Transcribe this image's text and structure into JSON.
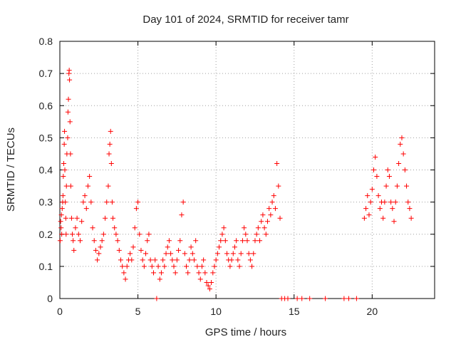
{
  "chart_data": {
    "type": "scatter",
    "title": "Day 101 of 2024, SRMTID for receiver tamr",
    "xlabel": "GPS time / hours",
    "ylabel": "SRMTID / TECUs",
    "xlim": [
      0,
      24
    ],
    "ylim": [
      0,
      0.8
    ],
    "x_ticks": [
      0,
      5,
      10,
      15,
      20
    ],
    "x_tick_labels": [
      "0",
      "5",
      "10",
      "15",
      "20"
    ],
    "y_ticks": [
      0,
      0.1,
      0.2,
      0.3,
      0.4,
      0.5,
      0.6,
      0.7,
      0.8
    ],
    "y_tick_labels": [
      "0",
      "0.1",
      "0.2",
      "0.3",
      "0.4",
      "0.5",
      "0.6",
      "0.7",
      "0.8"
    ],
    "grid": true,
    "marker": "plus",
    "color": "#ff0000",
    "series": [
      {
        "name": "SRMTID",
        "points": [
          [
            0.02,
            0.18
          ],
          [
            0.05,
            0.24
          ],
          [
            0.08,
            0.22
          ],
          [
            0.1,
            0.26
          ],
          [
            0.12,
            0.2
          ],
          [
            0.15,
            0.28
          ],
          [
            0.18,
            0.3
          ],
          [
            0.2,
            0.32
          ],
          [
            0.22,
            0.38
          ],
          [
            0.25,
            0.42
          ],
          [
            0.28,
            0.48
          ],
          [
            0.3,
            0.52
          ],
          [
            0.32,
            0.4
          ],
          [
            0.35,
            0.3
          ],
          [
            0.38,
            0.25
          ],
          [
            0.4,
            0.2
          ],
          [
            0.42,
            0.35
          ],
          [
            0.45,
            0.45
          ],
          [
            0.5,
            0.5
          ],
          [
            0.52,
            0.58
          ],
          [
            0.55,
            0.62
          ],
          [
            0.58,
            0.7
          ],
          [
            0.6,
            0.71
          ],
          [
            0.62,
            0.68
          ],
          [
            0.65,
            0.55
          ],
          [
            0.68,
            0.45
          ],
          [
            0.7,
            0.35
          ],
          [
            0.75,
            0.25
          ],
          [
            0.8,
            0.2
          ],
          [
            0.85,
            0.18
          ],
          [
            0.9,
            0.15
          ],
          [
            1.0,
            0.22
          ],
          [
            1.1,
            0.25
          ],
          [
            1.2,
            0.2
          ],
          [
            1.3,
            0.18
          ],
          [
            1.4,
            0.24
          ],
          [
            1.5,
            0.3
          ],
          [
            1.6,
            0.32
          ],
          [
            1.7,
            0.28
          ],
          [
            1.8,
            0.35
          ],
          [
            1.9,
            0.38
          ],
          [
            2.0,
            0.3
          ],
          [
            2.1,
            0.22
          ],
          [
            2.2,
            0.18
          ],
          [
            2.3,
            0.15
          ],
          [
            2.4,
            0.12
          ],
          [
            2.5,
            0.14
          ],
          [
            2.6,
            0.16
          ],
          [
            2.7,
            0.18
          ],
          [
            2.8,
            0.2
          ],
          [
            2.9,
            0.25
          ],
          [
            3.0,
            0.3
          ],
          [
            3.1,
            0.35
          ],
          [
            3.15,
            0.45
          ],
          [
            3.2,
            0.48
          ],
          [
            3.25,
            0.52
          ],
          [
            3.3,
            0.42
          ],
          [
            3.35,
            0.3
          ],
          [
            3.4,
            0.25
          ],
          [
            3.5,
            0.22
          ],
          [
            3.6,
            0.2
          ],
          [
            3.7,
            0.18
          ],
          [
            3.8,
            0.15
          ],
          [
            3.9,
            0.12
          ],
          [
            4.0,
            0.1
          ],
          [
            4.1,
            0.08
          ],
          [
            4.2,
            0.06
          ],
          [
            4.3,
            0.1
          ],
          [
            4.4,
            0.12
          ],
          [
            4.5,
            0.14
          ],
          [
            4.6,
            0.12
          ],
          [
            4.7,
            0.16
          ],
          [
            4.8,
            0.22
          ],
          [
            4.9,
            0.28
          ],
          [
            5.0,
            0.3
          ],
          [
            5.1,
            0.2
          ],
          [
            5.2,
            0.15
          ],
          [
            5.3,
            0.12
          ],
          [
            5.4,
            0.1
          ],
          [
            5.5,
            0.14
          ],
          [
            5.6,
            0.18
          ],
          [
            5.7,
            0.2
          ],
          [
            5.8,
            0.12
          ],
          [
            5.9,
            0.1
          ],
          [
            6.0,
            0.08
          ],
          [
            6.1,
            0.12
          ],
          [
            6.2,
            0.0
          ],
          [
            6.3,
            0.1
          ],
          [
            6.4,
            0.06
          ],
          [
            6.5,
            0.08
          ],
          [
            6.6,
            0.12
          ],
          [
            6.7,
            0.1
          ],
          [
            6.8,
            0.14
          ],
          [
            6.9,
            0.16
          ],
          [
            7.0,
            0.18
          ],
          [
            7.1,
            0.14
          ],
          [
            7.2,
            0.12
          ],
          [
            7.3,
            0.1
          ],
          [
            7.4,
            0.08
          ],
          [
            7.5,
            0.12
          ],
          [
            7.6,
            0.15
          ],
          [
            7.7,
            0.18
          ],
          [
            7.8,
            0.26
          ],
          [
            7.9,
            0.3
          ],
          [
            8.0,
            0.14
          ],
          [
            8.1,
            0.1
          ],
          [
            8.2,
            0.08
          ],
          [
            8.3,
            0.12
          ],
          [
            8.4,
            0.16
          ],
          [
            8.5,
            0.14
          ],
          [
            8.6,
            0.12
          ],
          [
            8.7,
            0.18
          ],
          [
            8.8,
            0.1
          ],
          [
            8.9,
            0.08
          ],
          [
            9.0,
            0.06
          ],
          [
            9.1,
            0.1
          ],
          [
            9.2,
            0.12
          ],
          [
            9.3,
            0.08
          ],
          [
            9.4,
            0.05
          ],
          [
            9.5,
            0.04
          ],
          [
            9.6,
            0.03
          ],
          [
            9.7,
            0.05
          ],
          [
            9.8,
            0.08
          ],
          [
            9.9,
            0.1
          ],
          [
            10.0,
            0.12
          ],
          [
            10.1,
            0.14
          ],
          [
            10.2,
            0.16
          ],
          [
            10.3,
            0.18
          ],
          [
            10.4,
            0.2
          ],
          [
            10.5,
            0.22
          ],
          [
            10.6,
            0.18
          ],
          [
            10.7,
            0.14
          ],
          [
            10.8,
            0.12
          ],
          [
            10.9,
            0.1
          ],
          [
            11.0,
            0.12
          ],
          [
            11.1,
            0.14
          ],
          [
            11.2,
            0.16
          ],
          [
            11.3,
            0.18
          ],
          [
            11.4,
            0.12
          ],
          [
            11.5,
            0.1
          ],
          [
            11.6,
            0.14
          ],
          [
            11.7,
            0.18
          ],
          [
            11.8,
            0.22
          ],
          [
            11.9,
            0.2
          ],
          [
            12.0,
            0.18
          ],
          [
            12.1,
            0.14
          ],
          [
            12.2,
            0.12
          ],
          [
            12.3,
            0.1
          ],
          [
            12.4,
            0.14
          ],
          [
            12.5,
            0.18
          ],
          [
            12.6,
            0.2
          ],
          [
            12.7,
            0.22
          ],
          [
            12.8,
            0.18
          ],
          [
            12.9,
            0.24
          ],
          [
            13.0,
            0.26
          ],
          [
            13.1,
            0.22
          ],
          [
            13.2,
            0.2
          ],
          [
            13.3,
            0.24
          ],
          [
            13.4,
            0.28
          ],
          [
            13.5,
            0.26
          ],
          [
            13.6,
            0.3
          ],
          [
            13.7,
            0.32
          ],
          [
            13.8,
            0.28
          ],
          [
            13.9,
            0.42
          ],
          [
            14.0,
            0.35
          ],
          [
            14.1,
            0.25
          ],
          [
            14.2,
            0.0
          ],
          [
            14.4,
            0.0
          ],
          [
            14.6,
            0.0
          ],
          [
            15.2,
            0.0
          ],
          [
            15.5,
            0.0
          ],
          [
            16.0,
            0.0
          ],
          [
            17.0,
            0.0
          ],
          [
            18.2,
            0.0
          ],
          [
            18.5,
            0.0
          ],
          [
            19.0,
            0.0
          ],
          [
            19.5,
            0.25
          ],
          [
            19.6,
            0.28
          ],
          [
            19.7,
            0.32
          ],
          [
            19.8,
            0.26
          ],
          [
            19.9,
            0.3
          ],
          [
            20.0,
            0.34
          ],
          [
            20.1,
            0.4
          ],
          [
            20.2,
            0.44
          ],
          [
            20.3,
            0.38
          ],
          [
            20.4,
            0.32
          ],
          [
            20.5,
            0.28
          ],
          [
            20.6,
            0.3
          ],
          [
            20.7,
            0.25
          ],
          [
            20.8,
            0.3
          ],
          [
            20.9,
            0.35
          ],
          [
            21.0,
            0.4
          ],
          [
            21.1,
            0.38
          ],
          [
            21.2,
            0.3
          ],
          [
            21.3,
            0.28
          ],
          [
            21.4,
            0.24
          ],
          [
            21.5,
            0.3
          ],
          [
            21.6,
            0.35
          ],
          [
            21.7,
            0.42
          ],
          [
            21.8,
            0.48
          ],
          [
            21.9,
            0.5
          ],
          [
            22.0,
            0.45
          ],
          [
            22.1,
            0.4
          ],
          [
            22.2,
            0.35
          ],
          [
            22.3,
            0.3
          ],
          [
            22.4,
            0.28
          ],
          [
            22.5,
            0.25
          ]
        ]
      }
    ]
  }
}
